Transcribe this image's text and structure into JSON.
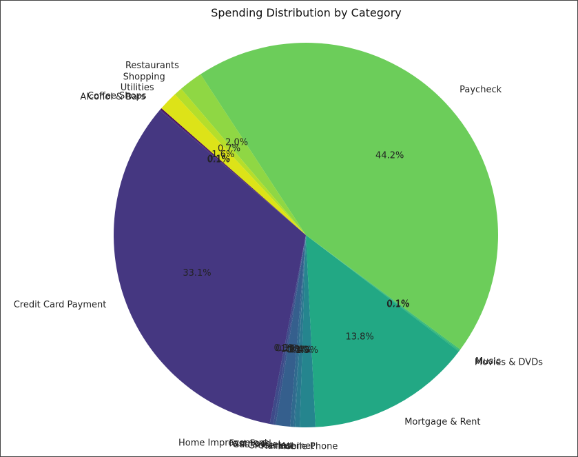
{
  "chart_data": {
    "type": "pie",
    "title": "Spending Distribution by Category",
    "start_angle_deg": 139.5,
    "direction": "counterclockwise",
    "slices": [
      {
        "label": "Credit Card Payment",
        "value": 33.1,
        "pct_label": "33.1%",
        "color": "#453781"
      },
      {
        "label": "Home Improvement",
        "value": 0.3,
        "pct_label": "0.3%",
        "color": "#3e4a89"
      },
      {
        "label": "Fast Food",
        "value": 0.2,
        "pct_label": "0.2%",
        "color": "#3b528b"
      },
      {
        "label": "Gas & Fuel",
        "value": 1.2,
        "pct_label": "1.2%",
        "color": "#355f8d"
      },
      {
        "label": "Groceries",
        "value": 0.3,
        "pct_label": "0.3%",
        "color": "#306a8e"
      },
      {
        "label": "Haircut",
        "value": 0.1,
        "pct_label": "0.1%",
        "color": "#2d708e"
      },
      {
        "label": "Internet",
        "value": 0.4,
        "pct_label": "0.4%",
        "color": "#2a778e"
      },
      {
        "label": "Mobile Phone",
        "value": 1.3,
        "pct_label": "1.3%",
        "color": "#25858e"
      },
      {
        "label": "Mortgage & Rent",
        "value": 13.8,
        "pct_label": "13.8%",
        "color": "#22a884"
      },
      {
        "label": "Movies & DVDs",
        "value": 0.1,
        "pct_label": "0.1%",
        "color": "#2fb47c"
      },
      {
        "label": "Music",
        "value": 0.1,
        "pct_label": "0.1%",
        "color": "#3bbb75"
      },
      {
        "label": "Paycheck",
        "value": 44.2,
        "pct_label": "44.2%",
        "color": "#6ccd5a"
      },
      {
        "label": "Restaurants",
        "value": 2.0,
        "pct_label": "2.0%",
        "color": "#8fd744"
      },
      {
        "label": "Shopping",
        "value": 0.7,
        "pct_label": "0.7%",
        "color": "#b5de2b"
      },
      {
        "label": "Utilities",
        "value": 1.6,
        "pct_label": "1.6%",
        "color": "#dde318"
      },
      {
        "label": "Coffee Shops",
        "value": 0.1,
        "pct_label": "0.1%",
        "color": "#440154"
      },
      {
        "label": "Alcohol & Bars",
        "value": 0.1,
        "pct_label": "0.1%",
        "color": "#472d7b"
      }
    ]
  }
}
